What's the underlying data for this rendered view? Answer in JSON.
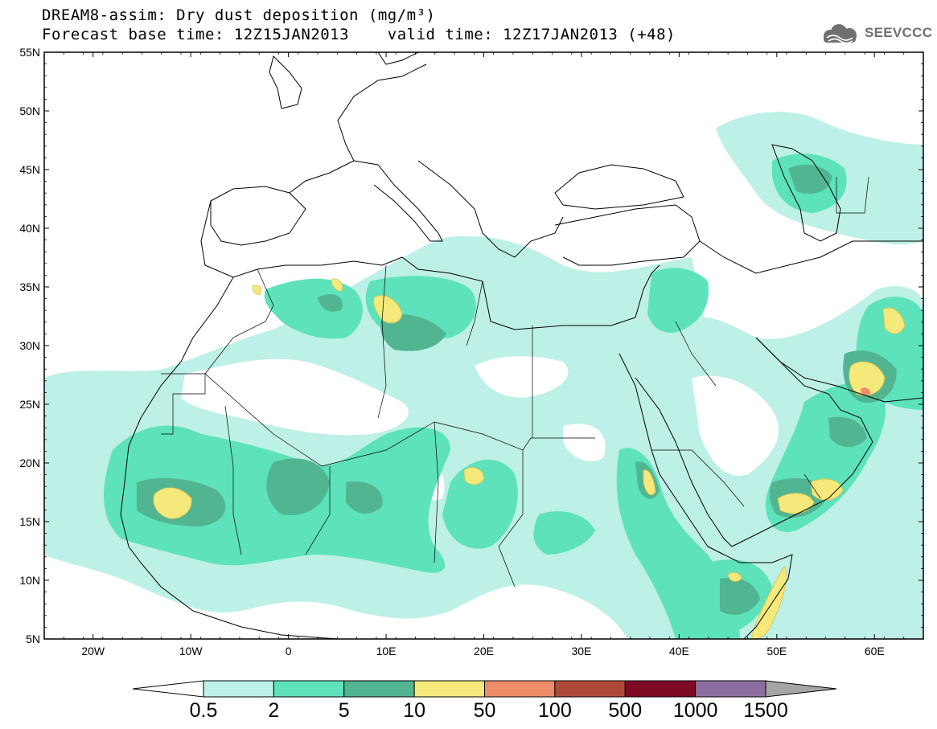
{
  "title": {
    "line1": "DREAM8-assim: Dry dust deposition (mg/m³)",
    "line2": "Forecast base time: 12Z15JAN2013    valid time: 12Z17JAN2013 (+48)"
  },
  "logo": {
    "text": "SEEVCCC",
    "icon": "cloud-logo-icon"
  },
  "map": {
    "lon_range": [
      -25,
      65
    ],
    "lat_range": [
      5,
      55
    ],
    "lat_ticks": [
      "55N",
      "50N",
      "45N",
      "40N",
      "35N",
      "30N",
      "25N",
      "20N",
      "15N",
      "10N",
      "5N"
    ],
    "lon_ticks": [
      "20W",
      "10W",
      "0",
      "10E",
      "20E",
      "30E",
      "40E",
      "50E",
      "60E"
    ]
  },
  "colorbar": {
    "labels": [
      "0.5",
      "2",
      "5",
      "10",
      "50",
      "100",
      "500",
      "1000",
      "1500"
    ],
    "colors": [
      "#bdf0e6",
      "#5de2bb",
      "#52b592",
      "#f5e97b",
      "#ef8c68",
      "#ae4a3a",
      "#7e0a25",
      "#8d6ea0",
      "#a5a5a5"
    ]
  },
  "colors": {
    "level1": "#bdf0e6",
    "level2": "#5de2bb",
    "level3": "#52b592",
    "level4": "#f5e97b",
    "level5": "#ef8c68"
  }
}
